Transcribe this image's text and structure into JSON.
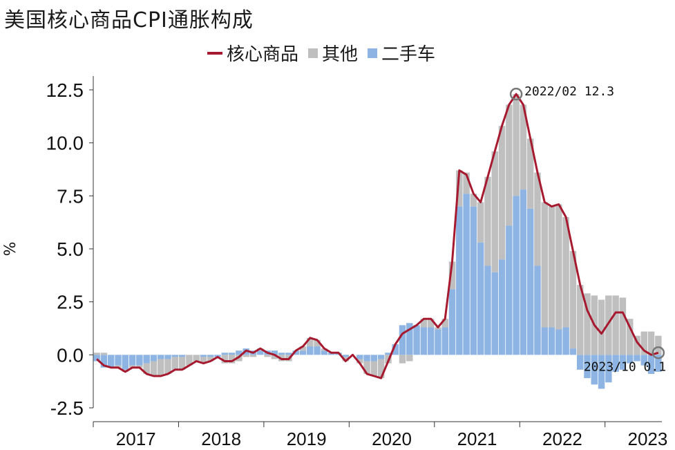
{
  "chart_data": {
    "type": "bar+line",
    "title": "美国核心商品CPI通胀构成",
    "ylabel": "%",
    "ylim": [
      -2.5,
      12.5
    ],
    "yticks": [
      "12.5",
      "10.0",
      "7.5",
      "5.0",
      "2.5",
      "0.0",
      "-2.5"
    ],
    "years": [
      "2017",
      "2018",
      "2019",
      "2020",
      "2021",
      "2022",
      "2023"
    ],
    "legend": [
      {
        "label": "核心商品",
        "kind": "line",
        "color": "#a6192e"
      },
      {
        "label": "其他",
        "kind": "bar",
        "color": "#bfbfbf"
      },
      {
        "label": "二手车",
        "kind": "bar",
        "color": "#8db4e2"
      }
    ],
    "core_goods": [
      -0.2,
      -0.5,
      -0.6,
      -0.6,
      -0.8,
      -0.6,
      -0.6,
      -0.9,
      -1.0,
      -1.0,
      -0.9,
      -0.7,
      -0.7,
      -0.5,
      -0.3,
      -0.4,
      -0.3,
      -0.1,
      -0.3,
      -0.3,
      -0.1,
      0.2,
      0.1,
      0.3,
      0.1,
      0.0,
      -0.2,
      -0.2,
      0.2,
      0.4,
      0.8,
      0.7,
      0.3,
      0.1,
      0.1,
      -0.3,
      0.0,
      -0.4,
      -0.9,
      -1.0,
      -1.1,
      -0.3,
      0.5,
      1.0,
      1.2,
      1.4,
      1.7,
      1.7,
      1.3,
      1.7,
      4.4,
      8.7,
      8.5,
      7.6,
      7.2,
      8.4,
      9.6,
      10.8,
      11.8,
      12.3,
      11.8,
      10.2,
      8.6,
      7.2,
      7.0,
      7.1,
      6.5,
      4.9,
      3.3,
      2.1,
      1.4,
      1.0,
      1.5,
      2.0,
      2.0,
      1.3,
      0.6,
      0.2,
      0.0,
      0.1
    ],
    "used_cars": [
      -0.3,
      -0.6,
      -0.6,
      -0.5,
      -0.7,
      -0.5,
      -0.5,
      -0.4,
      -0.3,
      -0.2,
      -0.2,
      -0.1,
      -0.1,
      0.0,
      0.0,
      -0.1,
      -0.1,
      -0.1,
      0.1,
      0.1,
      0.2,
      0.3,
      0.2,
      0.2,
      0.2,
      0.2,
      0.1,
      0.1,
      0.2,
      0.2,
      0.4,
      0.4,
      0.2,
      0.1,
      0.1,
      -0.1,
      0.0,
      -0.2,
      -0.3,
      -0.3,
      -0.2,
      0.1,
      0.5,
      1.4,
      1.5,
      1.4,
      1.3,
      1.3,
      1.2,
      1.3,
      3.1,
      7.0,
      7.6,
      7.0,
      5.3,
      4.2,
      3.9,
      4.5,
      6.1,
      7.5,
      7.8,
      6.9,
      4.2,
      1.3,
      1.3,
      1.2,
      1.3,
      0.3,
      -0.7,
      -1.1,
      -1.4,
      -1.6,
      -1.3,
      -0.8,
      -0.7,
      -0.4,
      -0.3,
      -0.5,
      -0.9,
      -0.8
    ],
    "other": [
      0.1,
      0.1,
      0.0,
      -0.1,
      -0.1,
      -0.1,
      -0.1,
      -0.5,
      -0.7,
      -0.8,
      -0.7,
      -0.6,
      -0.6,
      -0.5,
      -0.3,
      -0.3,
      -0.2,
      0.0,
      -0.4,
      -0.4,
      -0.3,
      -0.1,
      -0.1,
      0.1,
      -0.1,
      -0.2,
      -0.3,
      -0.3,
      0.0,
      0.2,
      0.4,
      0.3,
      0.1,
      0.0,
      0.0,
      -0.2,
      0.0,
      -0.2,
      -0.6,
      -0.7,
      -0.9,
      -0.4,
      0.0,
      -0.4,
      -0.3,
      0.0,
      0.4,
      0.4,
      0.1,
      0.4,
      1.3,
      1.7,
      1.0,
      0.6,
      1.9,
      4.2,
      5.7,
      6.3,
      5.7,
      4.8,
      4.0,
      3.3,
      4.4,
      5.9,
      5.7,
      5.9,
      5.2,
      4.6,
      3.3,
      2.9,
      2.8,
      2.6,
      2.8,
      2.8,
      2.7,
      1.7,
      0.9,
      1.1,
      1.1,
      0.9
    ],
    "annotations": [
      {
        "text": "2022/02  12.3",
        "index": 59,
        "value": 12.3
      },
      {
        "text": "2023/10  0.1",
        "index": 79,
        "value": 0.1
      }
    ]
  }
}
